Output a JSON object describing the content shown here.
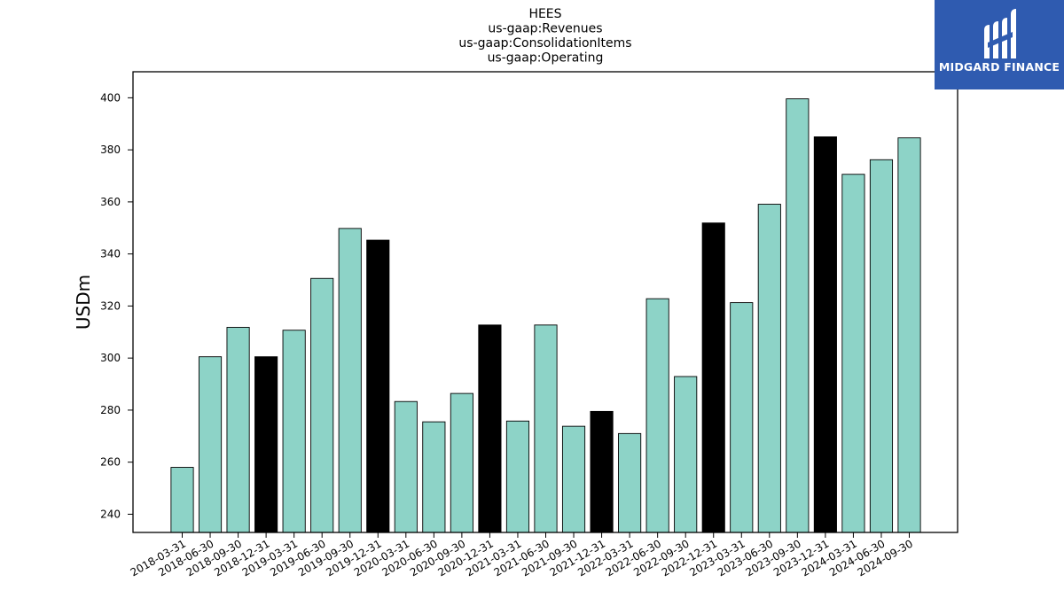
{
  "chart_data": {
    "type": "bar",
    "title_lines": [
      "HEES",
      "us-gaap:Revenues",
      "us-gaap:ConsolidationItems",
      "us-gaap:Operating"
    ],
    "ylabel": "USDm",
    "xlabel": "",
    "ylim": [
      233,
      410
    ],
    "yticks": [
      240,
      260,
      280,
      300,
      320,
      340,
      360,
      380,
      400
    ],
    "grid": false,
    "colors": {
      "quarter": "#8dd3c7",
      "year_end": "#000000",
      "edge": "#000000"
    },
    "categories": [
      "2018-03-31",
      "2018-06-30",
      "2018-09-30",
      "2018-12-31",
      "2019-03-31",
      "2019-06-30",
      "2019-09-30",
      "2019-12-31",
      "2020-03-31",
      "2020-06-30",
      "2020-09-30",
      "2020-12-31",
      "2021-03-31",
      "2021-06-30",
      "2021-09-30",
      "2021-12-31",
      "2022-03-31",
      "2022-06-30",
      "2022-09-30",
      "2022-12-31",
      "2023-03-31",
      "2023-06-30",
      "2023-09-30",
      "2023-12-31",
      "2024-03-31",
      "2024-06-30",
      "2024-09-30"
    ],
    "values": [
      258,
      300.5,
      311.8,
      300.5,
      310.7,
      330.6,
      349.8,
      345.3,
      283.3,
      275.5,
      286.4,
      312.7,
      275.8,
      312.7,
      273.8,
      279.5,
      271.0,
      322.8,
      292.9,
      351.9,
      321.3,
      359.1,
      399.6,
      385.0,
      370.6,
      376.2,
      384.6
    ],
    "highlight_year_end": [
      false,
      false,
      false,
      true,
      false,
      false,
      false,
      true,
      false,
      false,
      false,
      true,
      false,
      false,
      false,
      true,
      false,
      false,
      false,
      true,
      false,
      false,
      false,
      true,
      false,
      false,
      false
    ]
  },
  "logo": {
    "text": "MIDGARD FINANCE",
    "background": "#2f5bb0"
  }
}
